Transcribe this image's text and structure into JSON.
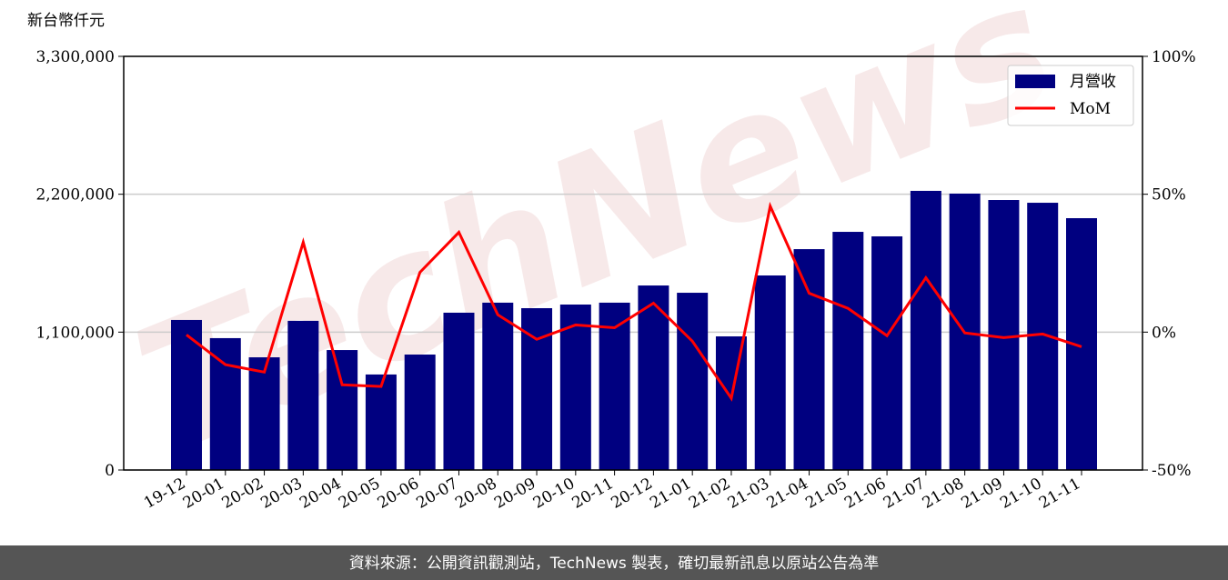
{
  "chart_data": {
    "type": "bar",
    "y_label": "新台幣仟元",
    "watermark": "TechNews",
    "footer": "資料來源：公開資訊觀測站，TechNews 製表，確切最新訊息以原站公告為準",
    "categories": [
      "19-12",
      "20-01",
      "20-02",
      "20-03",
      "20-04",
      "20-05",
      "20-06",
      "20-07",
      "20-08",
      "20-09",
      "20-10",
      "20-11",
      "20-12",
      "21-01",
      "21-02",
      "21-03",
      "21-04",
      "21-05",
      "21-06",
      "21-07",
      "21-08",
      "21-09",
      "21-10",
      "21-11"
    ],
    "series": [
      {
        "name": "月營收",
        "type": "bar",
        "color": "#000080",
        "values": [
          1197000,
          1052000,
          899000,
          1190000,
          957000,
          762000,
          921000,
          1255000,
          1335000,
          1291000,
          1320000,
          1335000,
          1472000,
          1414000,
          1066000,
          1552000,
          1762000,
          1900000,
          1864000,
          2227000,
          2205000,
          2154000,
          2132000,
          2009000
        ]
      },
      {
        "name": "MoM",
        "type": "line",
        "axis": "y2",
        "color": "#ff0000",
        "values": [
          -1,
          -11.8,
          -14.5,
          32.6,
          -19.1,
          -19.7,
          21.7,
          36.2,
          6.3,
          -2.6,
          2.6,
          1.6,
          10.5,
          -3.3,
          -24,
          45.7,
          14.1,
          8.6,
          -1.3,
          19.7,
          -0.3,
          -2,
          -0.7,
          -5.3
        ]
      }
    ],
    "ylim": [
      0,
      3300000
    ],
    "yticks": [
      0,
      {
        "value": 1100000,
        "label": "1,100,000"
      },
      {
        "value": 2200000,
        "label": "2,200,000"
      },
      {
        "value": 3300000,
        "label": "3,300,000"
      }
    ],
    "y2lim": [
      -50,
      100
    ],
    "y2ticks": [
      {
        "value": -50,
        "label": "-50%"
      },
      {
        "value": 0,
        "label": "0%"
      },
      {
        "value": 50,
        "label": "50%"
      },
      {
        "value": 100,
        "label": "100%"
      }
    ],
    "grid": true,
    "legend": "upper right"
  }
}
